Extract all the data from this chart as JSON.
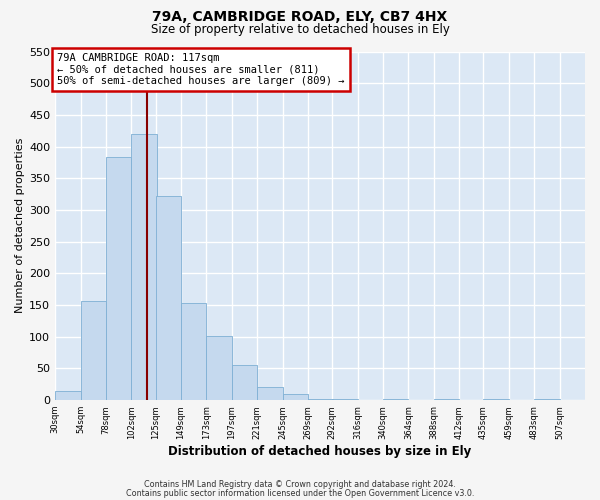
{
  "title": "79A, CAMBRIDGE ROAD, ELY, CB7 4HX",
  "subtitle": "Size of property relative to detached houses in Ely",
  "xlabel": "Distribution of detached houses by size in Ely",
  "ylabel": "Number of detached properties",
  "bar_color": "#c5d9ee",
  "bar_edge_color": "#7eafd4",
  "background_color": "#dce8f5",
  "grid_color": "#ffffff",
  "bin_labels": [
    "30sqm",
    "54sqm",
    "78sqm",
    "102sqm",
    "125sqm",
    "149sqm",
    "173sqm",
    "197sqm",
    "221sqm",
    "245sqm",
    "269sqm",
    "292sqm",
    "316sqm",
    "340sqm",
    "364sqm",
    "388sqm",
    "412sqm",
    "435sqm",
    "459sqm",
    "483sqm",
    "507sqm"
  ],
  "bin_edges": [
    30,
    54,
    78,
    102,
    125,
    149,
    173,
    197,
    221,
    245,
    269,
    292,
    316,
    340,
    364,
    388,
    412,
    435,
    459,
    483,
    507
  ],
  "bar_heights": [
    15,
    157,
    383,
    420,
    322,
    153,
    101,
    55,
    20,
    10,
    2,
    1,
    0,
    1,
    0,
    2,
    0,
    1,
    0,
    1,
    0
  ],
  "ylim": [
    0,
    550
  ],
  "yticks": [
    0,
    50,
    100,
    150,
    200,
    250,
    300,
    350,
    400,
    450,
    500,
    550
  ],
  "property_size": 117,
  "property_label": "79A CAMBRIDGE ROAD: 117sqm",
  "annotation_line1": "← 50% of detached houses are smaller (811)",
  "annotation_line2": "50% of semi-detached houses are larger (809) →",
  "box_edge_color": "#cc0000",
  "vline_color": "#880000",
  "footer1": "Contains HM Land Registry data © Crown copyright and database right 2024.",
  "footer2": "Contains public sector information licensed under the Open Government Licence v3.0.",
  "fig_bg": "#f5f5f5"
}
